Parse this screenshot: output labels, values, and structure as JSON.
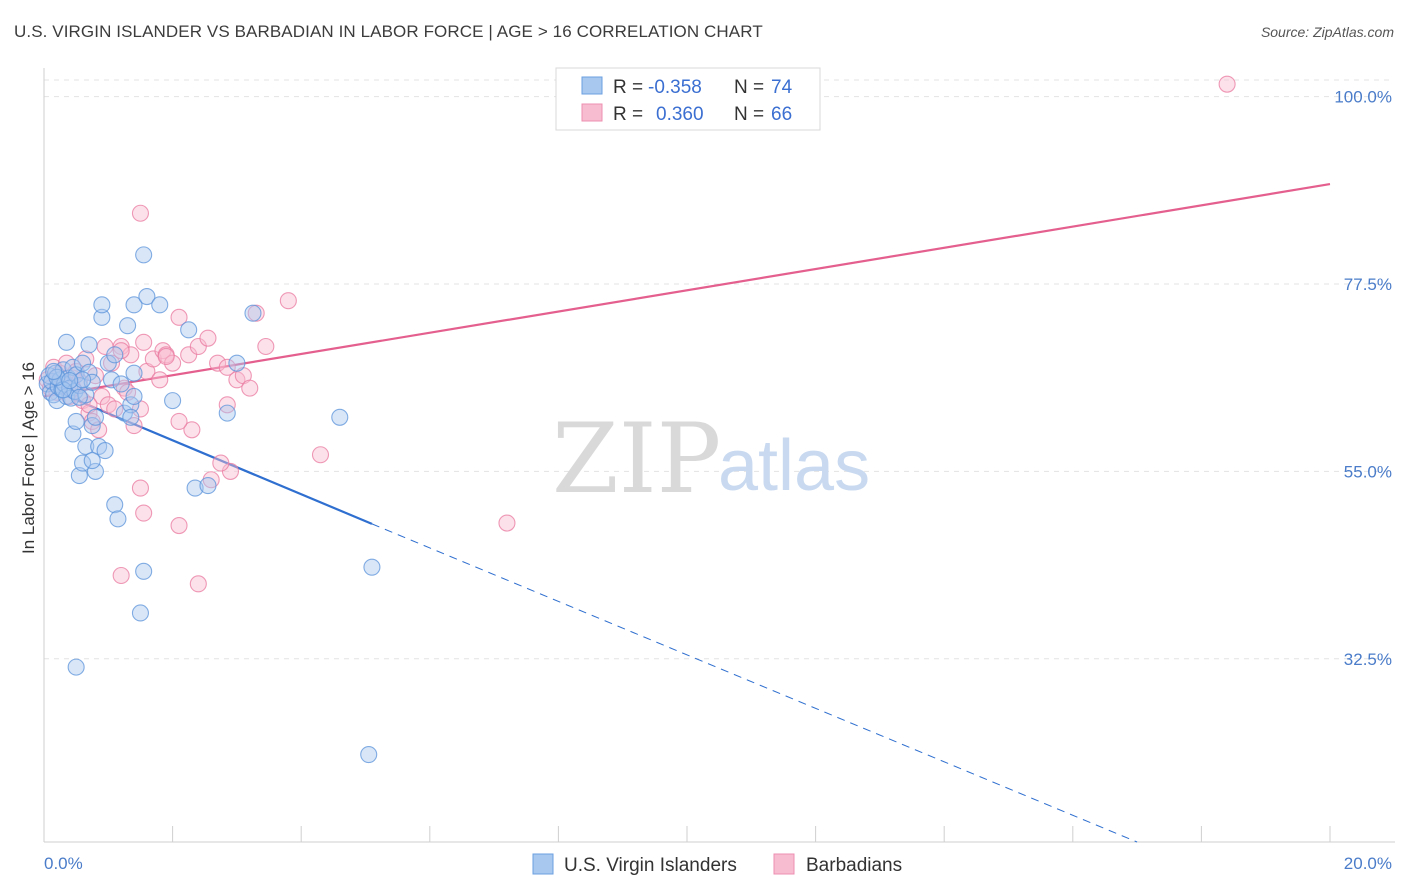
{
  "title": "U.S. VIRGIN ISLANDER VS BARBADIAN IN LABOR FORCE | AGE > 16 CORRELATION CHART",
  "source": "Source: ZipAtlas.com",
  "watermark": {
    "zip": "ZIP",
    "atlas": "atlas"
  },
  "legend_top": {
    "r_label": "R =",
    "n_label": "N =",
    "rows": [
      {
        "r": "-0.358",
        "n": "74",
        "color": "#a8c8f0",
        "stroke": "#6a9fe0"
      },
      {
        "r": "0.360",
        "n": "66",
        "color": "#f8bcd0",
        "stroke": "#ee8fb0"
      }
    ]
  },
  "legend_bottom": [
    "U.S. Virgin Islanders",
    "Barbadians"
  ],
  "chart_data": {
    "type": "scatter",
    "xlabel": "",
    "ylabel": "In Labor Force | Age > 16",
    "xlim": [
      0,
      20
    ],
    "ylim": [
      10.5,
      102
    ],
    "x_tick_labels": [
      "0.0%",
      "20.0%"
    ],
    "y_ticks": [
      32.5,
      55.0,
      77.5,
      100.0
    ],
    "y_tick_labels": [
      "32.5%",
      "55.0%",
      "77.5%",
      "100.0%"
    ],
    "grid": true,
    "colors": {
      "blue": "#5b93d9",
      "pink": "#ea7aa0",
      "blue_line": "#2f6fcf",
      "pink_line": "#e45f8e"
    },
    "series": [
      {
        "name": "U.S. Virgin Islanders",
        "color": "blue",
        "trend": {
          "x": [
            0.0,
            5.1
          ],
          "y": [
            65.2,
            48.7
          ],
          "dash_to": [
            17.0,
            10.5
          ]
        },
        "points": [
          [
            0.05,
            65.5
          ],
          [
            0.08,
            66.5
          ],
          [
            0.1,
            64.5
          ],
          [
            0.12,
            65.8
          ],
          [
            0.15,
            64.2
          ],
          [
            0.18,
            66.8
          ],
          [
            0.2,
            63.5
          ],
          [
            0.22,
            65.2
          ],
          [
            0.25,
            66.0
          ],
          [
            0.28,
            64.8
          ],
          [
            0.3,
            67.2
          ],
          [
            0.32,
            65.5
          ],
          [
            0.35,
            64.0
          ],
          [
            0.38,
            66.2
          ],
          [
            0.4,
            65.0
          ],
          [
            0.42,
            63.8
          ],
          [
            0.45,
            67.5
          ],
          [
            0.48,
            64.6
          ],
          [
            0.5,
            66.6
          ],
          [
            0.55,
            65.3
          ],
          [
            0.6,
            68.0
          ],
          [
            0.65,
            64.2
          ],
          [
            0.7,
            66.9
          ],
          [
            0.75,
            65.7
          ],
          [
            0.35,
            70.5
          ],
          [
            0.45,
            59.5
          ],
          [
            0.5,
            61.0
          ],
          [
            0.55,
            54.5
          ],
          [
            0.6,
            56.0
          ],
          [
            0.65,
            58.0
          ],
          [
            0.7,
            70.2
          ],
          [
            0.75,
            60.5
          ],
          [
            0.8,
            55.0
          ],
          [
            0.85,
            58.0
          ],
          [
            0.9,
            73.5
          ],
          [
            0.95,
            57.5
          ],
          [
            0.75,
            56.3
          ],
          [
            0.8,
            61.5
          ],
          [
            0.9,
            75.0
          ],
          [
            1.0,
            68.0
          ],
          [
            1.05,
            66.0
          ],
          [
            1.1,
            69.0
          ],
          [
            1.2,
            65.5
          ],
          [
            1.25,
            62.0
          ],
          [
            1.3,
            72.5
          ],
          [
            1.35,
            63.0
          ],
          [
            1.4,
            64.0
          ],
          [
            1.1,
            51.0
          ],
          [
            1.15,
            49.3
          ],
          [
            1.35,
            61.5
          ],
          [
            1.4,
            66.8
          ],
          [
            1.55,
            43.0
          ],
          [
            1.4,
            75.0
          ],
          [
            1.5,
            38.0
          ],
          [
            1.55,
            81.0
          ],
          [
            1.6,
            76.0
          ],
          [
            1.8,
            75.0
          ],
          [
            2.25,
            72.0
          ],
          [
            2.35,
            53.0
          ],
          [
            2.55,
            53.3
          ],
          [
            2.0,
            63.5
          ],
          [
            2.85,
            62.0
          ],
          [
            3.0,
            68.0
          ],
          [
            3.25,
            74.0
          ],
          [
            4.6,
            61.5
          ],
          [
            5.1,
            43.5
          ],
          [
            5.05,
            21.0
          ],
          [
            0.5,
            31.5
          ],
          [
            0.3,
            64.8
          ],
          [
            0.6,
            66.0
          ],
          [
            0.2,
            66.3
          ],
          [
            0.4,
            65.9
          ],
          [
            0.55,
            63.9
          ],
          [
            0.15,
            67.0
          ]
        ]
      },
      {
        "name": "Barbadians",
        "color": "pink",
        "trend": {
          "x": [
            0.0,
            20.0
          ],
          "y": [
            64.0,
            89.5
          ]
        },
        "points": [
          [
            0.05,
            66.0
          ],
          [
            0.1,
            65.0
          ],
          [
            0.15,
            67.5
          ],
          [
            0.2,
            64.5
          ],
          [
            0.25,
            66.8
          ],
          [
            0.3,
            65.5
          ],
          [
            0.35,
            68.0
          ],
          [
            0.4,
            64.0
          ],
          [
            0.45,
            66.2
          ],
          [
            0.5,
            67.0
          ],
          [
            0.55,
            65.8
          ],
          [
            0.6,
            63.5
          ],
          [
            0.65,
            68.5
          ],
          [
            0.7,
            62.0
          ],
          [
            0.75,
            61.0
          ],
          [
            0.8,
            66.5
          ],
          [
            0.85,
            60.0
          ],
          [
            0.9,
            64.0
          ],
          [
            0.95,
            70.0
          ],
          [
            1.0,
            63.0
          ],
          [
            1.05,
            68.0
          ],
          [
            1.1,
            62.5
          ],
          [
            1.2,
            70.0
          ],
          [
            1.25,
            65.0
          ],
          [
            1.3,
            64.5
          ],
          [
            1.35,
            69.0
          ],
          [
            1.4,
            60.5
          ],
          [
            1.5,
            62.5
          ],
          [
            1.55,
            70.5
          ],
          [
            1.6,
            67.0
          ],
          [
            1.7,
            68.5
          ],
          [
            1.8,
            66.0
          ],
          [
            1.85,
            69.5
          ],
          [
            1.9,
            69.0
          ],
          [
            2.0,
            68.0
          ],
          [
            2.1,
            73.5
          ],
          [
            2.25,
            69.0
          ],
          [
            2.4,
            70.0
          ],
          [
            2.55,
            71.0
          ],
          [
            2.7,
            68.0
          ],
          [
            2.85,
            67.5
          ],
          [
            3.0,
            66.0
          ],
          [
            3.1,
            66.5
          ],
          [
            3.2,
            65.0
          ],
          [
            3.3,
            74.0
          ],
          [
            3.8,
            75.5
          ],
          [
            3.45,
            70.0
          ],
          [
            2.85,
            63.0
          ],
          [
            1.5,
            53.0
          ],
          [
            1.55,
            50.0
          ],
          [
            2.1,
            48.5
          ],
          [
            2.6,
            54.0
          ],
          [
            2.3,
            60.0
          ],
          [
            2.1,
            61.0
          ],
          [
            1.2,
            42.5
          ],
          [
            2.4,
            41.5
          ],
          [
            1.5,
            86.0
          ],
          [
            4.3,
            57.0
          ],
          [
            7.2,
            48.8
          ],
          [
            18.4,
            101.5
          ],
          [
            2.9,
            55.0
          ],
          [
            1.2,
            69.5
          ],
          [
            0.7,
            63.0
          ],
          [
            0.45,
            65.0
          ],
          [
            1.9,
            68.8
          ],
          [
            2.75,
            56.0
          ]
        ]
      }
    ]
  }
}
